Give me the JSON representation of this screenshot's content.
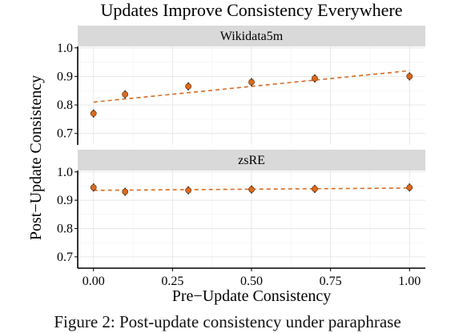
{
  "figure": {
    "title": "Updates Improve Consistency Everywhere",
    "xlabel": "Pre−Update Consistency",
    "ylabel": "Post−Update Consistency",
    "caption": "Figure 2: Post-update consistency under paraphrase"
  },
  "colors": {
    "point": "#d9691f",
    "trend": "#d9691f",
    "strip": "#d9d9d9",
    "grid": "#e6e6e6"
  },
  "chart_data": [
    {
      "type": "scatter",
      "title": "Wikidata5m",
      "x": [
        0.0,
        0.1,
        0.3,
        0.5,
        0.7,
        1.0
      ],
      "y": [
        0.77,
        0.837,
        0.865,
        0.88,
        0.893,
        0.9
      ],
      "trend": [
        [
          0.0,
          0.81
        ],
        [
          1.0,
          0.92
        ]
      ],
      "xlim": [
        -0.05,
        1.05
      ],
      "ylim": [
        0.66,
        1.005
      ],
      "xticks": [
        "0.00",
        "0.25",
        "0.50",
        "0.75",
        "1.00"
      ],
      "yticks": [
        "0.7",
        "0.8",
        "0.9",
        "1.0"
      ],
      "grid": true
    },
    {
      "type": "scatter",
      "title": "zsRE",
      "x": [
        0.0,
        0.1,
        0.3,
        0.5,
        0.7,
        1.0
      ],
      "y": [
        0.945,
        0.93,
        0.935,
        0.938,
        0.94,
        0.945
      ],
      "trend": [
        [
          0.0,
          0.935
        ],
        [
          1.0,
          0.943
        ]
      ],
      "xlim": [
        -0.05,
        1.05
      ],
      "ylim": [
        0.66,
        1.005
      ],
      "xticks": [
        "0.00",
        "0.25",
        "0.50",
        "0.75",
        "1.00"
      ],
      "yticks": [
        "0.7",
        "0.8",
        "0.9",
        "1.0"
      ],
      "grid": true
    }
  ]
}
